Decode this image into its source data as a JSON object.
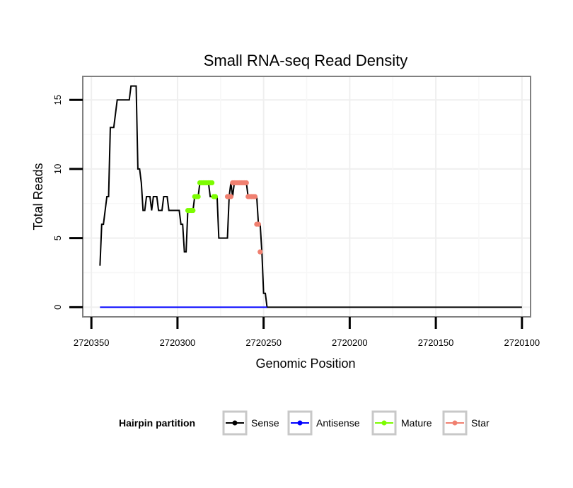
{
  "chart_data": {
    "type": "line",
    "title": "Small RNA-seq Read Density",
    "xlabel": "Genomic Position",
    "ylabel": "Total Reads",
    "xlim": [
      2720355,
      2720095
    ],
    "ylim": [
      -0.7,
      16.7
    ],
    "x_reversed": true,
    "xticks": [
      2720350,
      2720300,
      2720250,
      2720200,
      2720150,
      2720100
    ],
    "xtick_labels": [
      "2720350",
      "2720300",
      "2720250",
      "2720200",
      "2720150",
      "2720100"
    ],
    "yticks": [
      0,
      5,
      10,
      15
    ],
    "ytick_labels": [
      "0",
      "5",
      "10",
      "15"
    ],
    "grid": true,
    "legend": {
      "title": "Hairpin partition",
      "position": "bottom",
      "entries": [
        {
          "label": "Sense",
          "color": "#000000"
        },
        {
          "label": "Antisense",
          "color": "#0000ff"
        },
        {
          "label": "Mature",
          "color": "#7cfc00"
        },
        {
          "label": "Star",
          "color": "#f08070"
        }
      ]
    },
    "series": [
      {
        "name": "Sense",
        "color": "#000000",
        "points": [
          [
            2720345,
            3
          ],
          [
            2720344,
            6
          ],
          [
            2720343,
            6
          ],
          [
            2720341,
            8
          ],
          [
            2720340,
            8
          ],
          [
            2720339,
            13
          ],
          [
            2720337,
            13
          ],
          [
            2720335,
            15
          ],
          [
            2720333,
            15
          ],
          [
            2720328,
            15
          ],
          [
            2720327,
            16
          ],
          [
            2720324,
            16
          ],
          [
            2720323,
            10
          ],
          [
            2720322,
            10
          ],
          [
            2720321,
            9
          ],
          [
            2720320,
            7
          ],
          [
            2720319,
            7
          ],
          [
            2720318,
            8
          ],
          [
            2720316,
            8
          ],
          [
            2720315,
            7
          ],
          [
            2720314,
            8
          ],
          [
            2720312,
            8
          ],
          [
            2720311,
            7
          ],
          [
            2720309,
            7
          ],
          [
            2720308,
            8
          ],
          [
            2720306,
            8
          ],
          [
            2720305,
            7
          ],
          [
            2720299,
            7
          ],
          [
            2720298,
            6
          ],
          [
            2720297,
            6
          ],
          [
            2720296,
            4
          ],
          [
            2720295,
            4
          ],
          [
            2720294,
            7
          ],
          [
            2720291,
            7
          ],
          [
            2720290,
            8
          ],
          [
            2720288,
            8
          ],
          [
            2720287,
            9
          ],
          [
            2720282,
            9
          ],
          [
            2720281,
            8
          ],
          [
            2720280,
            8
          ],
          [
            2720277,
            8
          ],
          [
            2720276,
            5
          ],
          [
            2720271,
            5
          ],
          [
            2720270,
            8
          ],
          [
            2720269,
            9
          ],
          [
            2720268,
            8
          ],
          [
            2720267,
            9
          ],
          [
            2720260,
            9
          ],
          [
            2720259,
            8
          ],
          [
            2720254,
            8
          ],
          [
            2720253,
            6
          ],
          [
            2720252,
            6
          ],
          [
            2720251,
            4
          ],
          [
            2720250,
            1
          ],
          [
            2720249,
            1
          ],
          [
            2720248,
            0
          ],
          [
            2720100,
            0
          ]
        ]
      },
      {
        "name": "Antisense",
        "color": "#0000ff",
        "points": [
          [
            2720345,
            0
          ],
          [
            2720248,
            0
          ]
        ]
      },
      {
        "name": "Mature",
        "color": "#7cfc00",
        "points": [
          [
            2720294,
            7
          ],
          [
            2720293,
            7
          ],
          [
            2720292,
            7
          ],
          [
            2720291,
            7
          ],
          [
            2720290,
            8
          ],
          [
            2720289,
            8
          ],
          [
            2720288,
            8
          ],
          [
            2720287,
            9
          ],
          [
            2720286,
            9
          ],
          [
            2720285,
            9
          ],
          [
            2720284,
            9
          ],
          [
            2720283,
            9
          ],
          [
            2720282,
            9
          ],
          [
            2720281,
            9
          ],
          [
            2720280,
            9
          ],
          [
            2720279,
            8
          ],
          [
            2720278,
            8
          ]
        ]
      },
      {
        "name": "Star",
        "color": "#f08070",
        "points": [
          [
            2720271,
            8
          ],
          [
            2720270,
            8
          ],
          [
            2720269,
            8
          ],
          [
            2720268,
            9
          ],
          [
            2720267,
            9
          ],
          [
            2720266,
            9
          ],
          [
            2720265,
            9
          ],
          [
            2720264,
            9
          ],
          [
            2720263,
            9
          ],
          [
            2720262,
            9
          ],
          [
            2720261,
            9
          ],
          [
            2720260,
            9
          ],
          [
            2720259,
            8
          ],
          [
            2720258,
            8
          ],
          [
            2720257,
            8
          ],
          [
            2720256,
            8
          ],
          [
            2720255,
            8
          ],
          [
            2720254,
            6
          ],
          [
            2720253,
            6
          ],
          [
            2720252,
            4
          ]
        ]
      }
    ]
  }
}
